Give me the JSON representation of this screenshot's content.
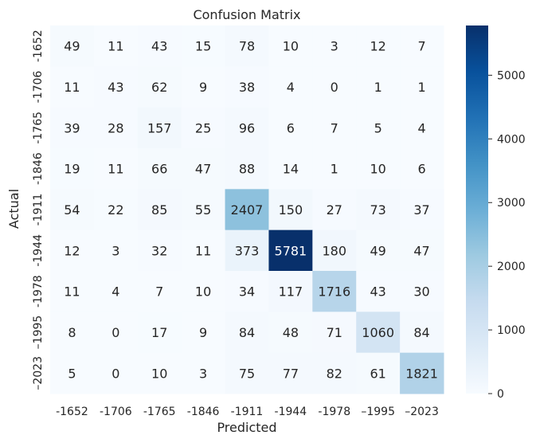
{
  "chart_data": {
    "type": "heatmap",
    "title": "Confusion Matrix",
    "xlabel": "Predicted",
    "ylabel": "Actual",
    "x_categories": [
      "-1652",
      "-1706",
      "-1765",
      "-1846",
      "-1911",
      "-1944",
      "-1978",
      "–1995",
      "–2023"
    ],
    "y_categories": [
      "-1652",
      "-1706",
      "-1765",
      "-1846",
      "-1911",
      "-1944",
      "-1978",
      "–1995",
      "–2023"
    ],
    "values": [
      [
        49,
        11,
        43,
        15,
        78,
        10,
        3,
        12,
        7
      ],
      [
        11,
        43,
        62,
        9,
        38,
        4,
        0,
        1,
        1
      ],
      [
        39,
        28,
        157,
        25,
        96,
        6,
        7,
        5,
        4
      ],
      [
        19,
        11,
        66,
        47,
        88,
        14,
        1,
        10,
        6
      ],
      [
        54,
        22,
        85,
        55,
        2407,
        150,
        27,
        73,
        37
      ],
      [
        12,
        3,
        32,
        11,
        373,
        5781,
        180,
        49,
        47
      ],
      [
        11,
        4,
        7,
        10,
        34,
        117,
        1716,
        43,
        30
      ],
      [
        8,
        0,
        17,
        9,
        84,
        48,
        71,
        1060,
        84
      ],
      [
        5,
        0,
        10,
        3,
        75,
        77,
        82,
        61,
        1821
      ]
    ],
    "colormap": "Blues",
    "vmin": 0,
    "vmax": 5781,
    "colorbar_ticks": [
      "0",
      "1000",
      "2000",
      "3000",
      "4000",
      "5000"
    ],
    "colorbar_tick_values": [
      0,
      1000,
      2000,
      3000,
      4000,
      5000
    ],
    "grid": false
  }
}
